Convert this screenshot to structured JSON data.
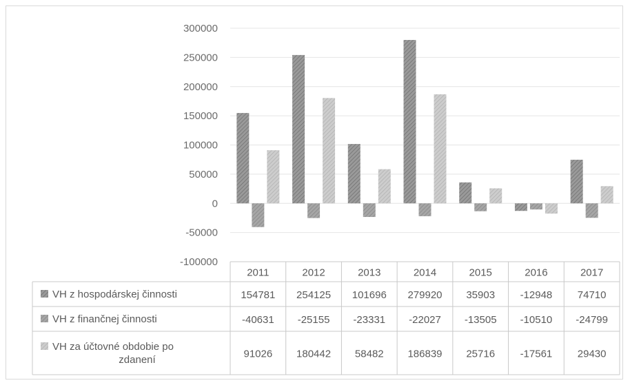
{
  "chart_data": {
    "type": "bar",
    "categories": [
      "2011",
      "2012",
      "2013",
      "2014",
      "2015",
      "2016",
      "2017"
    ],
    "ylim": [
      -100000,
      300000
    ],
    "y_ticks": [
      300000,
      250000,
      200000,
      150000,
      100000,
      50000,
      0,
      -50000,
      -100000
    ],
    "grid": true,
    "data_table": true,
    "series": [
      {
        "name": "VH z hospodárskej činnosti",
        "legend_lines": [
          "VH z hospodárskej činnosti"
        ],
        "color": "#8c8c8c",
        "values": [
          154781,
          254125,
          101696,
          279920,
          35903,
          -12948,
          74710
        ],
        "labels": [
          "154781",
          "254125",
          "101696",
          "279920",
          "35903",
          "-12948",
          "74710"
        ]
      },
      {
        "name": "VH z finančnej činnosti",
        "legend_lines": [
          "VH z finančnej činnosti"
        ],
        "color": "#9a9a9a",
        "values": [
          -40631,
          -25155,
          -23331,
          -22027,
          -13505,
          -10510,
          -24799
        ],
        "labels": [
          "-40631",
          "-25155",
          "-23331",
          "-22027",
          "-13505",
          "-10510",
          "-24799"
        ]
      },
      {
        "name": "VH za účtovné obdobie po zdanení",
        "legend_lines": [
          "VH za účtovné obdobie po",
          "zdanení"
        ],
        "color": "#c2c2c2",
        "values": [
          91026,
          180442,
          58482,
          186839,
          25716,
          -17561,
          29430
        ],
        "labels": [
          "91026",
          "180442",
          "58482",
          "186839",
          "25716",
          "-17561",
          "29430"
        ]
      }
    ]
  }
}
